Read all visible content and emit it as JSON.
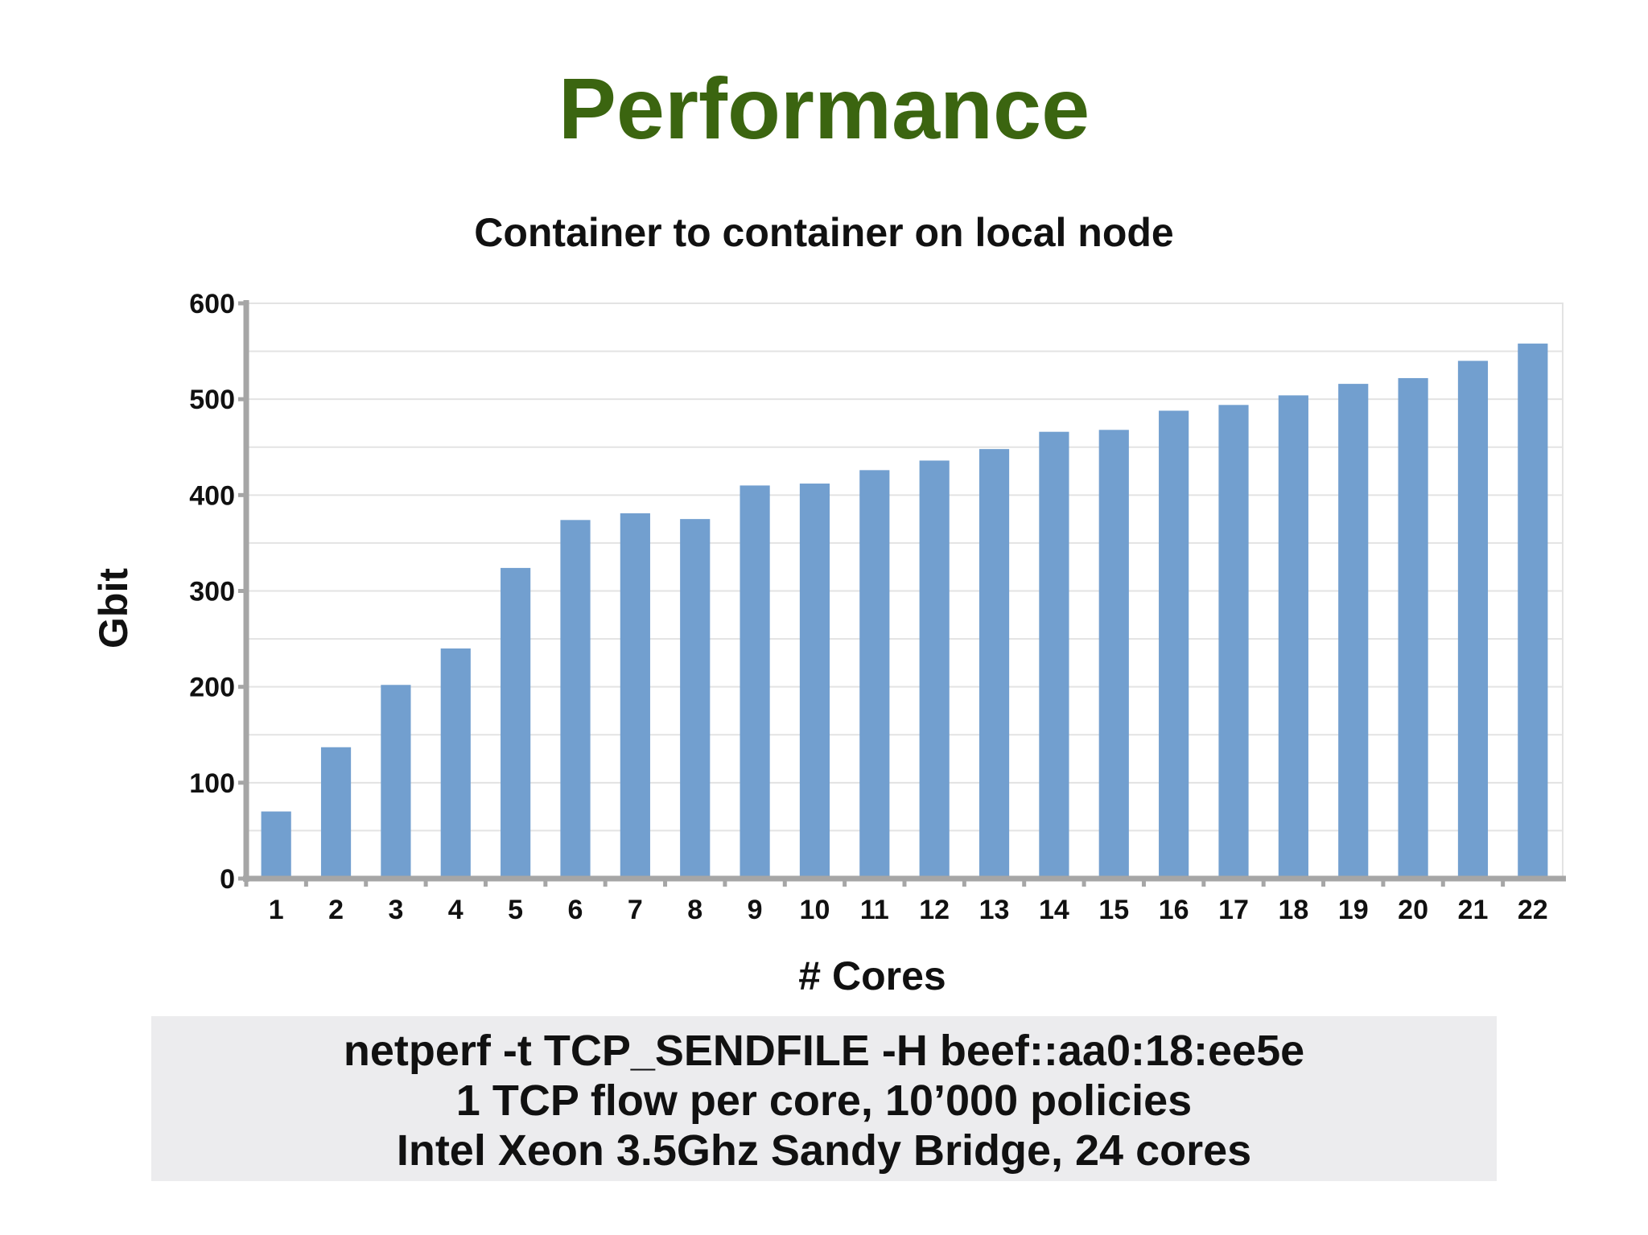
{
  "slide": {
    "title": "Performance"
  },
  "chart_data": {
    "type": "bar",
    "title": "Container to container on local node",
    "xlabel": "# Cores",
    "ylabel": "Gbit",
    "ylim": [
      0,
      600
    ],
    "yticks": [
      0,
      100,
      200,
      300,
      400,
      500,
      600
    ],
    "grid": true,
    "legend": "none",
    "categories": [
      "1",
      "2",
      "3",
      "4",
      "5",
      "6",
      "7",
      "8",
      "9",
      "10",
      "11",
      "12",
      "13",
      "14",
      "15",
      "16",
      "17",
      "18",
      "19",
      "20",
      "21",
      "22"
    ],
    "values": [
      70,
      137,
      202,
      240,
      324,
      374,
      381,
      375,
      410,
      412,
      426,
      436,
      448,
      466,
      468,
      488,
      494,
      504,
      516,
      522,
      540,
      558
    ],
    "bar_color": "#729fcf"
  },
  "caption": {
    "lines": [
      "netperf -t TCP_SENDFILE -H beef::aa0:18:ee5e",
      "1 TCP flow per core, 10’000 policies",
      "Intel Xeon 3.5Ghz Sandy Bridge, 24 cores"
    ]
  }
}
